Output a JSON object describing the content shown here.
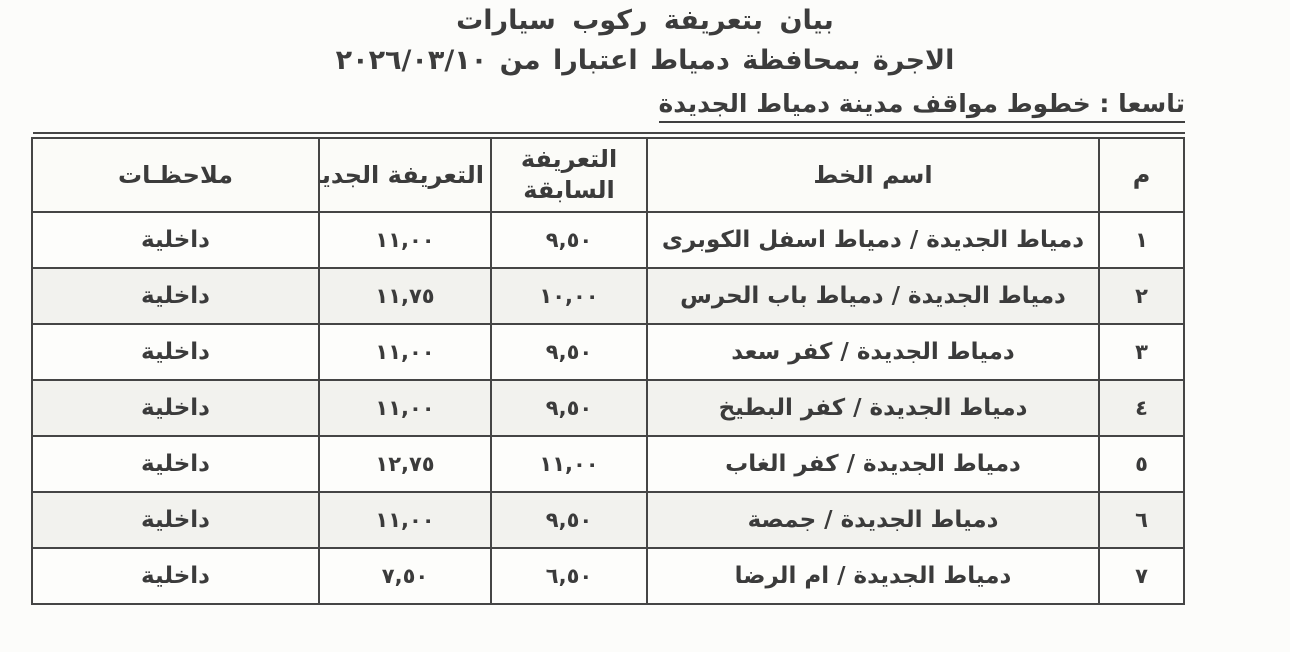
{
  "document": {
    "title_line1": "بيان بتعريفة ركوب سيارات",
    "title_line2": "الاجرة بمحافظة دمياط اعتبارا من ٢٠٢٦/٠٣/١٠",
    "section_heading": "تاسعا : خطوط مواقف مدينة دمياط الجديدة"
  },
  "table": {
    "headers": {
      "number": "م",
      "line_name": "اسم الخط",
      "previous_tariff": "التعريفة السابقة",
      "new_tariff": "التعريفة الجديدة",
      "notes": "ملاحظـات"
    },
    "rows": [
      {
        "number": "١",
        "line_name": "دمياط الجديدة / دمياط اسفل الكوبرى",
        "previous_tariff": "٩,٥٠",
        "new_tariff": "١١,٠٠",
        "notes": "داخلية"
      },
      {
        "number": "٢",
        "line_name": "دمياط الجديدة / دمياط باب الحرس",
        "previous_tariff": "١٠,٠٠",
        "new_tariff": "١١,٧٥",
        "notes": "داخلية"
      },
      {
        "number": "٣",
        "line_name": "دمياط الجديدة / كفر سعد",
        "previous_tariff": "٩,٥٠",
        "new_tariff": "١١,٠٠",
        "notes": "داخلية"
      },
      {
        "number": "٤",
        "line_name": "دمياط الجديدة / كفر البطيخ",
        "previous_tariff": "٩,٥٠",
        "new_tariff": "١١,٠٠",
        "notes": "داخلية"
      },
      {
        "number": "٥",
        "line_name": "دمياط الجديدة / كفر الغاب",
        "previous_tariff": "١١,٠٠",
        "new_tariff": "١٢,٧٥",
        "notes": "داخلية"
      },
      {
        "number": "٦",
        "line_name": "دمياط الجديدة / جمصة",
        "previous_tariff": "٩,٥٠",
        "new_tariff": "١١,٠٠",
        "notes": "داخلية"
      },
      {
        "number": "٧",
        "line_name": "دمياط الجديدة / ام الرضا",
        "previous_tariff": "٦,٥٠",
        "new_tariff": "٧,٥٠",
        "notes": "داخلية"
      }
    ]
  },
  "colors": {
    "text": "#3b3b3b",
    "border": "#454545",
    "background": "#fcfcfa",
    "row_tint": "#f2f2ee"
  }
}
